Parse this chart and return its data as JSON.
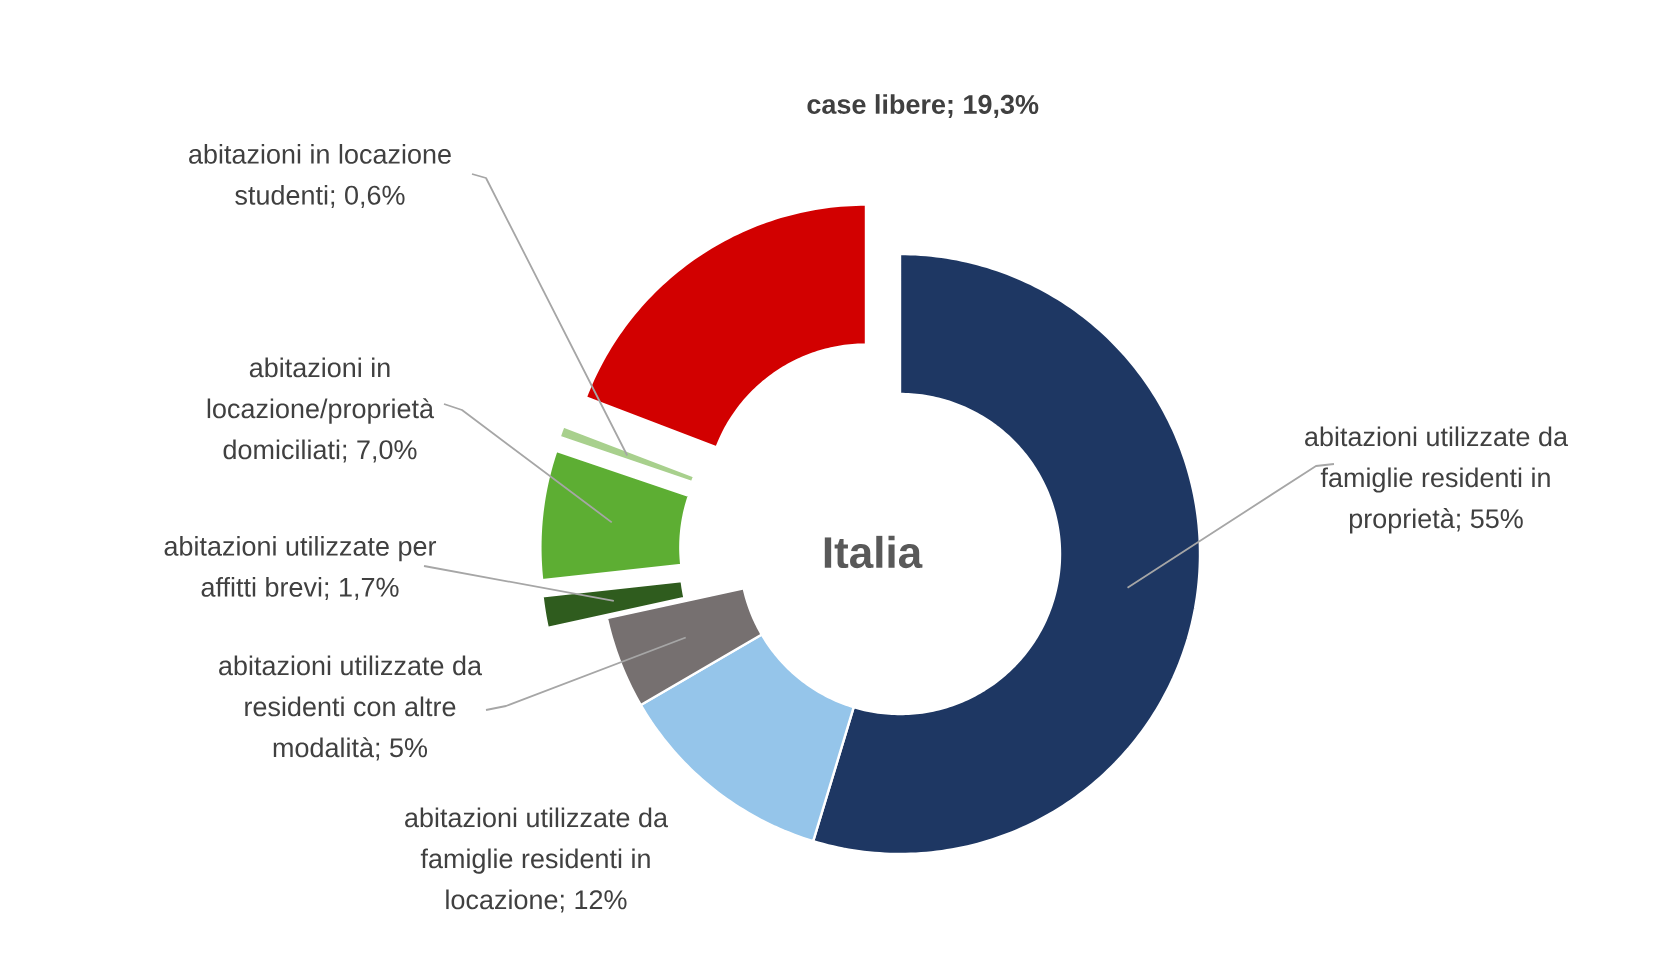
{
  "chart_data": {
    "type": "donut",
    "title": "Italia",
    "categories": [
      "abitazioni utilizzate da famiglie residenti in proprietà; 55%",
      "abitazioni utilizzate da famiglie residenti in locazione; 12%",
      "abitazioni utilizzate da residenti con altre modalità; 5%",
      "abitazioni utilizzate per affitti brevi; 1,7%",
      "abitazioni in locazione/proprietà domiciliati; 7,0%",
      "abitazioni in locazione studenti; 0,6%",
      "case libere; 19,3%"
    ],
    "values": [
      55,
      12,
      5,
      1.7,
      7.0,
      0.6,
      19.3
    ],
    "colors": [
      "#1e3763",
      "#95c5ea",
      "#767070",
      "#2f5c1e",
      "#5dae33",
      "#a8d08d",
      "#d20000"
    ]
  }
}
